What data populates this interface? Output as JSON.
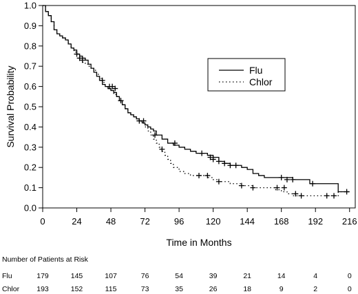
{
  "chart_data": {
    "type": "line",
    "subtype": "kaplan-meier",
    "title": "",
    "xlabel": "Time in Months",
    "ylabel": "Survival Probability",
    "xlim": [
      0,
      220
    ],
    "ylim": [
      0,
      1
    ],
    "xticks": [
      "0",
      "24",
      "48",
      "72",
      "96",
      "120",
      "144",
      "168",
      "192",
      "216"
    ],
    "xtick_values": [
      0,
      24,
      48,
      72,
      96,
      120,
      144,
      168,
      192,
      216
    ],
    "yticks": [
      "0.0",
      "0.1",
      "0.2",
      "0.3",
      "0.4",
      "0.5",
      "0.6",
      "0.7",
      "0.8",
      "0.9",
      "1.0"
    ],
    "ytick_values": [
      0,
      0.1,
      0.2,
      0.3,
      0.4,
      0.5,
      0.6,
      0.7,
      0.8,
      0.9,
      1.0
    ],
    "grid": false,
    "legend_position": "right",
    "series": [
      {
        "name": "Flu",
        "line_style": "solid",
        "color": "#000000",
        "x": [
          0,
          2,
          4,
          6,
          8,
          10,
          12,
          14,
          16,
          18,
          20,
          22,
          24,
          26,
          28,
          30,
          32,
          34,
          36,
          38,
          40,
          42,
          44,
          46,
          48,
          50,
          52,
          54,
          56,
          58,
          60,
          62,
          64,
          66,
          68,
          70,
          72,
          74,
          76,
          78,
          80,
          84,
          88,
          92,
          96,
          100,
          104,
          108,
          112,
          116,
          120,
          124,
          128,
          132,
          136,
          140,
          144,
          148,
          152,
          156,
          160,
          164,
          168,
          172,
          176,
          180,
          184,
          188,
          192,
          196,
          200,
          206,
          208,
          216
        ],
        "y": [
          1.0,
          0.97,
          0.95,
          0.92,
          0.88,
          0.86,
          0.85,
          0.84,
          0.83,
          0.81,
          0.79,
          0.78,
          0.76,
          0.75,
          0.74,
          0.73,
          0.71,
          0.69,
          0.67,
          0.65,
          0.63,
          0.61,
          0.6,
          0.59,
          0.58,
          0.57,
          0.55,
          0.53,
          0.51,
          0.49,
          0.47,
          0.46,
          0.45,
          0.44,
          0.43,
          0.42,
          0.41,
          0.4,
          0.39,
          0.38,
          0.36,
          0.34,
          0.32,
          0.31,
          0.3,
          0.29,
          0.28,
          0.27,
          0.27,
          0.26,
          0.25,
          0.23,
          0.22,
          0.21,
          0.21,
          0.2,
          0.19,
          0.17,
          0.16,
          0.15,
          0.15,
          0.15,
          0.15,
          0.15,
          0.14,
          0.14,
          0.14,
          0.12,
          0.12,
          0.12,
          0.12,
          0.12,
          0.08,
          0.08
        ],
        "censor_x": [
          26,
          42,
          47,
          49,
          51,
          68,
          71,
          79,
          93,
          112,
          118,
          120,
          124,
          128,
          132,
          136,
          168,
          172,
          176,
          190,
          214
        ],
        "censor_y": [
          0.74,
          0.63,
          0.6,
          0.6,
          0.59,
          0.43,
          0.43,
          0.36,
          0.32,
          0.27,
          0.25,
          0.24,
          0.23,
          0.22,
          0.21,
          0.21,
          0.15,
          0.14,
          0.14,
          0.12,
          0.08
        ]
      },
      {
        "name": "Chlor",
        "line_style": "dotted",
        "color": "#000000",
        "x": [
          0,
          2,
          4,
          6,
          8,
          10,
          12,
          14,
          16,
          18,
          20,
          22,
          24,
          26,
          28,
          30,
          32,
          34,
          36,
          38,
          40,
          42,
          44,
          46,
          48,
          50,
          52,
          54,
          56,
          58,
          60,
          62,
          64,
          66,
          68,
          70,
          72,
          74,
          76,
          78,
          80,
          82,
          84,
          86,
          88,
          90,
          92,
          96,
          100,
          104,
          108,
          112,
          116,
          120,
          124,
          128,
          132,
          136,
          140,
          144,
          148,
          152,
          156,
          160,
          164,
          168,
          172,
          176,
          180,
          184,
          188,
          192,
          196,
          200,
          204,
          208,
          216
        ],
        "y": [
          1.0,
          0.97,
          0.95,
          0.92,
          0.88,
          0.86,
          0.85,
          0.84,
          0.83,
          0.81,
          0.79,
          0.77,
          0.76,
          0.74,
          0.72,
          0.71,
          0.7,
          0.69,
          0.68,
          0.66,
          0.64,
          0.62,
          0.6,
          0.59,
          0.58,
          0.56,
          0.55,
          0.53,
          0.51,
          0.49,
          0.47,
          0.46,
          0.45,
          0.44,
          0.43,
          0.42,
          0.4,
          0.38,
          0.36,
          0.34,
          0.32,
          0.3,
          0.28,
          0.26,
          0.24,
          0.22,
          0.2,
          0.18,
          0.17,
          0.16,
          0.16,
          0.16,
          0.15,
          0.14,
          0.13,
          0.13,
          0.12,
          0.12,
          0.11,
          0.11,
          0.1,
          0.1,
          0.1,
          0.1,
          0.09,
          0.08,
          0.07,
          0.06,
          0.06,
          0.06,
          0.06,
          0.06,
          0.06,
          0.06,
          0.06,
          0.08,
          0.08
        ],
        "censor_x": [
          24,
          28,
          55,
          84,
          110,
          116,
          124,
          140,
          148,
          165,
          170,
          178,
          182,
          200,
          205
        ],
        "censor_y": [
          0.76,
          0.73,
          0.53,
          0.29,
          0.16,
          0.16,
          0.13,
          0.11,
          0.1,
          0.1,
          0.1,
          0.07,
          0.06,
          0.06,
          0.06
        ]
      }
    ]
  },
  "risk_table": {
    "heading": "Number of Patients at Risk",
    "rows": [
      {
        "label": "Flu",
        "values": [
          "179",
          "145",
          "107",
          "76",
          "54",
          "39",
          "21",
          "14",
          "4",
          "0"
        ]
      },
      {
        "label": "Chlor",
        "values": [
          "193",
          "152",
          "115",
          "73",
          "35",
          "26",
          "18",
          "9",
          "2",
          "0"
        ]
      }
    ]
  }
}
